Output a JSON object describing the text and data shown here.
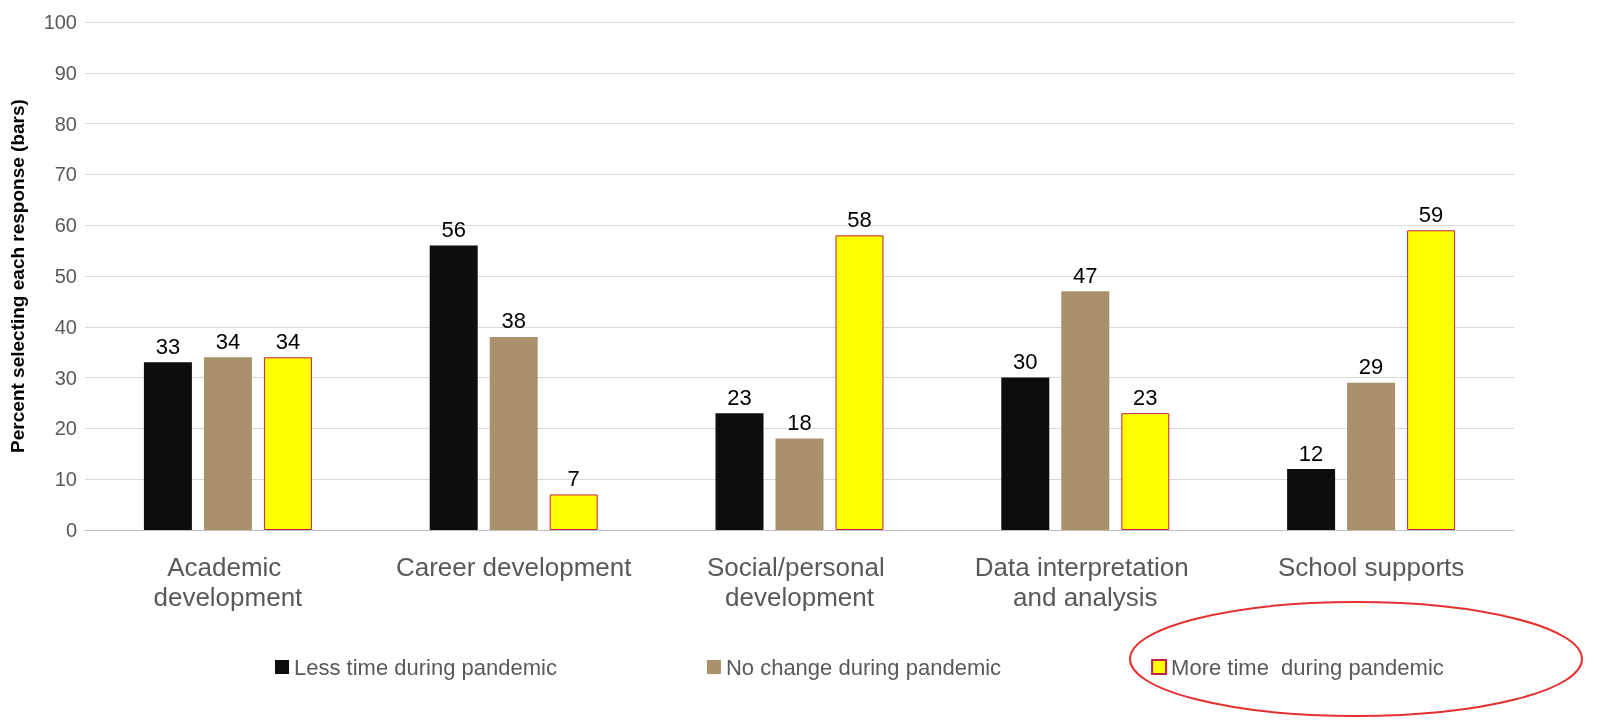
{
  "chart_data": {
    "type": "bar",
    "ylabel": "Percent selecting each response (bars)",
    "categories": [
      "Academic development",
      "Career development",
      "Social/personal development",
      "Data interpretation and analysis",
      "School supports"
    ],
    "series": [
      {
        "name": "Less time during pandemic",
        "color": "#0d0d0d",
        "values": [
          33,
          56,
          23,
          30,
          12
        ]
      },
      {
        "name": "No change during pandemic",
        "color": "#a9916b",
        "values": [
          34,
          38,
          18,
          47,
          29
        ]
      },
      {
        "name": "More time  during pandemic",
        "color": "#ffff00",
        "values": [
          34,
          7,
          58,
          23,
          59
        ]
      }
    ],
    "ylim": [
      0,
      100
    ],
    "yticks": [
      0,
      10,
      20,
      30,
      40,
      50,
      60,
      70,
      80,
      90,
      100
    ],
    "grid": "y",
    "legend": "bottom",
    "data_labels": true
  }
}
